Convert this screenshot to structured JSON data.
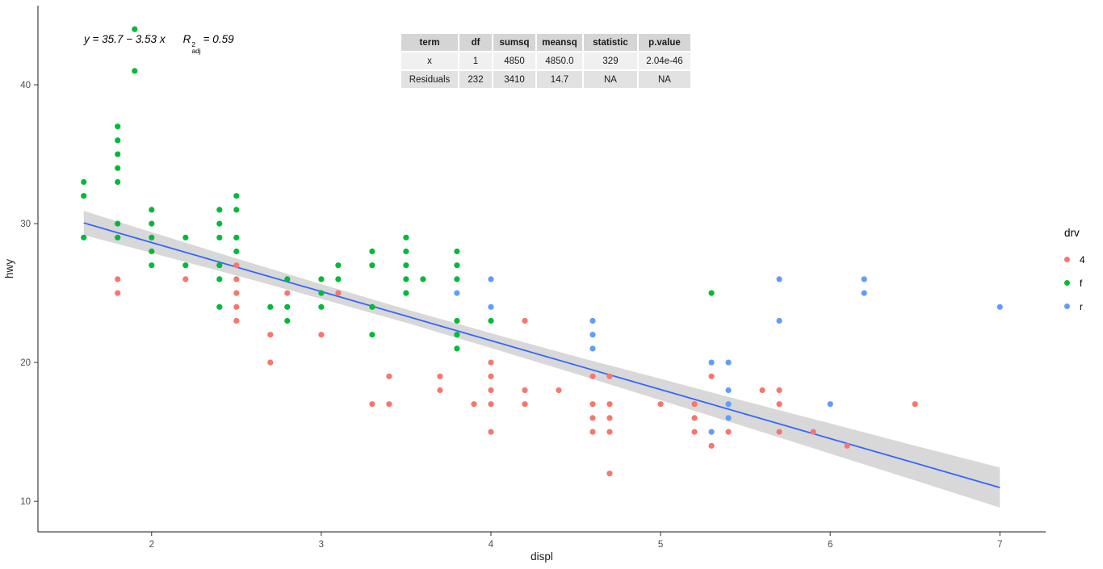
{
  "chart_data": {
    "type": "scatter",
    "xlabel": "displ",
    "ylabel": "hwy",
    "xlim": [
      1.33,
      7.27
    ],
    "ylim": [
      7.8,
      45.7
    ],
    "x_ticks": [
      2,
      3,
      4,
      5,
      6,
      7
    ],
    "y_ticks": [
      10,
      20,
      30,
      40
    ],
    "grid": false,
    "annotation": {
      "equation": "y = 35.7 − 3.53 x",
      "r_symbol": "R",
      "r_sup": "2",
      "r_sub": "adj",
      "r_value": "= 0.59"
    },
    "legend": {
      "title": "drv",
      "position": "right",
      "entries": [
        {
          "label": "4",
          "color": "#F8766D"
        },
        {
          "label": "f",
          "color": "#00BA38"
        },
        {
          "label": "r",
          "color": "#619CFF"
        }
      ]
    },
    "series": [
      {
        "name": "4",
        "color": "#F8766D",
        "points": [
          [
            1.8,
            26
          ],
          [
            1.8,
            25
          ],
          [
            2.2,
            26
          ],
          [
            2.5,
            27
          ],
          [
            2.5,
            26
          ],
          [
            2.5,
            25
          ],
          [
            2.5,
            24
          ],
          [
            2.5,
            23
          ],
          [
            2.7,
            22
          ],
          [
            2.7,
            20
          ],
          [
            2.8,
            25
          ],
          [
            3.0,
            22
          ],
          [
            3.1,
            25
          ],
          [
            3.3,
            17
          ],
          [
            3.4,
            19
          ],
          [
            3.4,
            17
          ],
          [
            3.7,
            19
          ],
          [
            3.7,
            18
          ],
          [
            3.9,
            17
          ],
          [
            4.0,
            20
          ],
          [
            4.0,
            19
          ],
          [
            4.0,
            18
          ],
          [
            4.0,
            17
          ],
          [
            4.0,
            15
          ],
          [
            4.2,
            23
          ],
          [
            4.2,
            18
          ],
          [
            4.2,
            17
          ],
          [
            4.4,
            18
          ],
          [
            4.6,
            19
          ],
          [
            4.6,
            17
          ],
          [
            4.6,
            16
          ],
          [
            4.6,
            15
          ],
          [
            4.7,
            19
          ],
          [
            4.7,
            17
          ],
          [
            4.7,
            16
          ],
          [
            4.7,
            15
          ],
          [
            4.7,
            12
          ],
          [
            5.0,
            17
          ],
          [
            5.2,
            17
          ],
          [
            5.2,
            16
          ],
          [
            5.2,
            15
          ],
          [
            5.3,
            19
          ],
          [
            5.3,
            14
          ],
          [
            5.4,
            15
          ],
          [
            5.6,
            18
          ],
          [
            5.7,
            18
          ],
          [
            5.7,
            17
          ],
          [
            5.7,
            15
          ],
          [
            5.9,
            15
          ],
          [
            6.1,
            14
          ],
          [
            6.5,
            17
          ]
        ]
      },
      {
        "name": "f",
        "color": "#00BA38",
        "points": [
          [
            1.6,
            33
          ],
          [
            1.6,
            32
          ],
          [
            1.6,
            29
          ],
          [
            1.8,
            37
          ],
          [
            1.8,
            36
          ],
          [
            1.8,
            35
          ],
          [
            1.8,
            34
          ],
          [
            1.8,
            33
          ],
          [
            1.8,
            30
          ],
          [
            1.8,
            29
          ],
          [
            1.9,
            44
          ],
          [
            1.9,
            41
          ],
          [
            2.0,
            31
          ],
          [
            2.0,
            30
          ],
          [
            2.0,
            29
          ],
          [
            2.0,
            28
          ],
          [
            2.0,
            27
          ],
          [
            2.2,
            29
          ],
          [
            2.2,
            27
          ],
          [
            2.4,
            31
          ],
          [
            2.4,
            30
          ],
          [
            2.4,
            29
          ],
          [
            2.4,
            27
          ],
          [
            2.4,
            26
          ],
          [
            2.4,
            24
          ],
          [
            2.5,
            32
          ],
          [
            2.5,
            31
          ],
          [
            2.5,
            29
          ],
          [
            2.5,
            28
          ],
          [
            2.7,
            24
          ],
          [
            2.8,
            26
          ],
          [
            2.8,
            24
          ],
          [
            2.8,
            23
          ],
          [
            3.0,
            26
          ],
          [
            3.0,
            25
          ],
          [
            3.0,
            24
          ],
          [
            3.1,
            27
          ],
          [
            3.1,
            26
          ],
          [
            3.3,
            28
          ],
          [
            3.3,
            27
          ],
          [
            3.3,
            24
          ],
          [
            3.3,
            22
          ],
          [
            3.5,
            29
          ],
          [
            3.5,
            28
          ],
          [
            3.5,
            27
          ],
          [
            3.5,
            26
          ],
          [
            3.5,
            25
          ],
          [
            3.6,
            26
          ],
          [
            3.8,
            28
          ],
          [
            3.8,
            27
          ],
          [
            3.8,
            26
          ],
          [
            3.8,
            23
          ],
          [
            3.8,
            22
          ],
          [
            3.8,
            21
          ],
          [
            4.0,
            23
          ],
          [
            5.3,
            25
          ]
        ]
      },
      {
        "name": "r",
        "color": "#619CFF",
        "points": [
          [
            3.8,
            25
          ],
          [
            4.0,
            26
          ],
          [
            4.0,
            24
          ],
          [
            4.6,
            23
          ],
          [
            4.6,
            22
          ],
          [
            4.6,
            21
          ],
          [
            5.3,
            20
          ],
          [
            5.3,
            15
          ],
          [
            5.4,
            20
          ],
          [
            5.4,
            18
          ],
          [
            5.4,
            17
          ],
          [
            5.4,
            16
          ],
          [
            5.7,
            26
          ],
          [
            5.7,
            23
          ],
          [
            6.0,
            17
          ],
          [
            6.2,
            26
          ],
          [
            6.2,
            25
          ],
          [
            7.0,
            24
          ]
        ]
      }
    ],
    "smooth": {
      "method": "lm",
      "intercept": 35.7,
      "slope": -3.53,
      "x_range": [
        1.6,
        7.0
      ],
      "line_color": "#3366FF",
      "band_color": "rgba(110,110,110,0.27)",
      "band": [
        [
          1.6,
          29.18,
          30.92
        ],
        [
          2.0,
          27.89,
          29.39
        ],
        [
          2.5,
          26.26,
          27.49
        ],
        [
          3.0,
          24.58,
          25.64
        ],
        [
          3.5,
          22.86,
          23.83
        ],
        [
          4.0,
          21.05,
          22.11
        ],
        [
          4.5,
          19.19,
          20.44
        ],
        [
          5.0,
          17.28,
          18.82
        ],
        [
          5.5,
          15.37,
          17.2
        ],
        [
          6.0,
          13.43,
          15.61
        ],
        [
          6.5,
          11.5,
          14.01
        ],
        [
          7.0,
          9.55,
          12.43
        ]
      ]
    },
    "axis": {
      "line_color": "#1a1a1a",
      "tick_color": "#333333",
      "tick_label_color": "#4d4d4d"
    }
  },
  "stats_table": {
    "headers": [
      "term",
      "df",
      "sumsq",
      "meansq",
      "statistic",
      "p.value"
    ],
    "rows": [
      [
        "x",
        "1",
        "4850",
        "4850.0",
        "329",
        "2.04e-46"
      ],
      [
        "Residuals",
        "232",
        "3410",
        "14.7",
        "NA",
        "NA"
      ]
    ]
  }
}
